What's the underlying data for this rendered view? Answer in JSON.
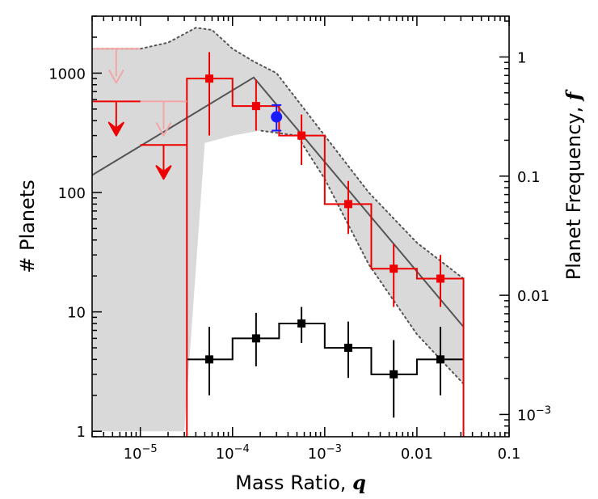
{
  "chart_data": {
    "type": "scatter",
    "title": "",
    "xlabel": "Mass Ratio,",
    "xlabel_symbol": "q",
    "ylabel": "# Planets",
    "y2label": "Planet Frequency,",
    "y2label_symbol": "f",
    "xscale": "log",
    "yscale": "log",
    "xlim": [
      3e-06,
      0.1
    ],
    "ylim": [
      0.9,
      3000
    ],
    "y2lim": [
      0.00065,
      2.2
    ],
    "x_tick_labels": [
      {
        "value": 1e-05,
        "label": "10",
        "exp": "−5"
      },
      {
        "value": 0.0001,
        "label": "10",
        "exp": "−4"
      },
      {
        "value": 0.001,
        "label": "10",
        "exp": "−3"
      },
      {
        "value": 0.01,
        "label": "0.01",
        "exp": ""
      },
      {
        "value": 0.1,
        "label": "0.1",
        "exp": ""
      }
    ],
    "y_tick_labels": [
      {
        "value": 1,
        "label": "1"
      },
      {
        "value": 10,
        "label": "10"
      },
      {
        "value": 100,
        "label": "100"
      },
      {
        "value": 1000,
        "label": "1000"
      }
    ],
    "y2_tick_labels": [
      {
        "value": 1,
        "label": "1",
        "exp": ""
      },
      {
        "value": 0.1,
        "label": "0.1",
        "exp": ""
      },
      {
        "value": 0.01,
        "label": "0.01",
        "exp": ""
      },
      {
        "value": 0.001,
        "label": "10",
        "exp": "−3"
      }
    ],
    "confidence_band": {
      "color": "#d9d9d9",
      "upper": [
        [
          3e-06,
          1600
        ],
        [
          1e-05,
          1600
        ],
        [
          2e-05,
          1800
        ],
        [
          4e-05,
          2400
        ],
        [
          6e-05,
          2300
        ],
        [
          0.0001,
          1600
        ],
        [
          0.00017,
          1250
        ],
        [
          0.0003,
          1000
        ],
        [
          0.001,
          300
        ],
        [
          0.003,
          100
        ],
        [
          0.01,
          38
        ],
        [
          0.032,
          19
        ]
      ],
      "lower": [
        [
          0.032,
          2.5
        ],
        [
          0.01,
          6.5
        ],
        [
          0.003,
          25
        ],
        [
          0.001,
          130
        ],
        [
          0.0005,
          300
        ],
        [
          0.0002,
          330
        ],
        [
          0.0001,
          300
        ],
        [
          5e-05,
          260
        ],
        [
          3e-05,
          1
        ],
        [
          3e-06,
          1
        ]
      ]
    },
    "power_law_fit": {
      "color": "#555555",
      "points": [
        [
          3e-06,
          140
        ],
        [
          0.00017,
          920
        ],
        [
          0.032,
          7.5
        ]
      ]
    },
    "series": [
      {
        "name": "detected planets histogram",
        "color": "#000000",
        "bin_edges": [
          3.2e-05,
          0.0001,
          0.00032,
          0.001,
          0.0032,
          0.01,
          0.032
        ],
        "centers": [
          5.6e-05,
          0.00018,
          0.00056,
          0.0018,
          0.0056,
          0.018
        ],
        "values": [
          4,
          6,
          8,
          5,
          3,
          4
        ],
        "err_low": [
          2,
          3.5,
          5.5,
          2.8,
          1.3,
          2
        ],
        "err_high": [
          7.5,
          9.8,
          11,
          8.3,
          5.8,
          7.5
        ]
      },
      {
        "name": "planet distribution histogram",
        "color": "#ee0000",
        "bin_edges": [
          3.2e-05,
          0.0001,
          0.00032,
          0.001,
          0.0032,
          0.01,
          0.032
        ],
        "centers": [
          5.6e-05,
          0.00018,
          0.00056,
          0.0018,
          0.0056,
          0.018
        ],
        "values": [
          900,
          530,
          300,
          80,
          23,
          19
        ],
        "err_low": [
          300,
          330,
          170,
          45,
          11,
          11
        ],
        "err_high": [
          1500,
          880,
          450,
          125,
          37,
          30
        ]
      },
      {
        "name": "upper limits",
        "color": "#ee0000",
        "bins": [
          [
            3e-06,
            1e-05
          ],
          [
            1e-05,
            3.2e-05
          ]
        ],
        "values": [
          580,
          250
        ],
        "arrow_to": [
          300,
          130
        ]
      },
      {
        "name": "upper limits (faint)",
        "color": "#f4a6a6",
        "bins": [
          [
            3e-06,
            1e-05
          ],
          [
            1e-05,
            3.2e-05
          ]
        ],
        "values": [
          1600,
          580
        ],
        "arrow_to": [
          830,
          300
        ]
      },
      {
        "name": "single measurement",
        "color": "#1a1aff",
        "x": 0.0003,
        "y": 430,
        "err_low": 330,
        "err_high": 540
      }
    ]
  }
}
